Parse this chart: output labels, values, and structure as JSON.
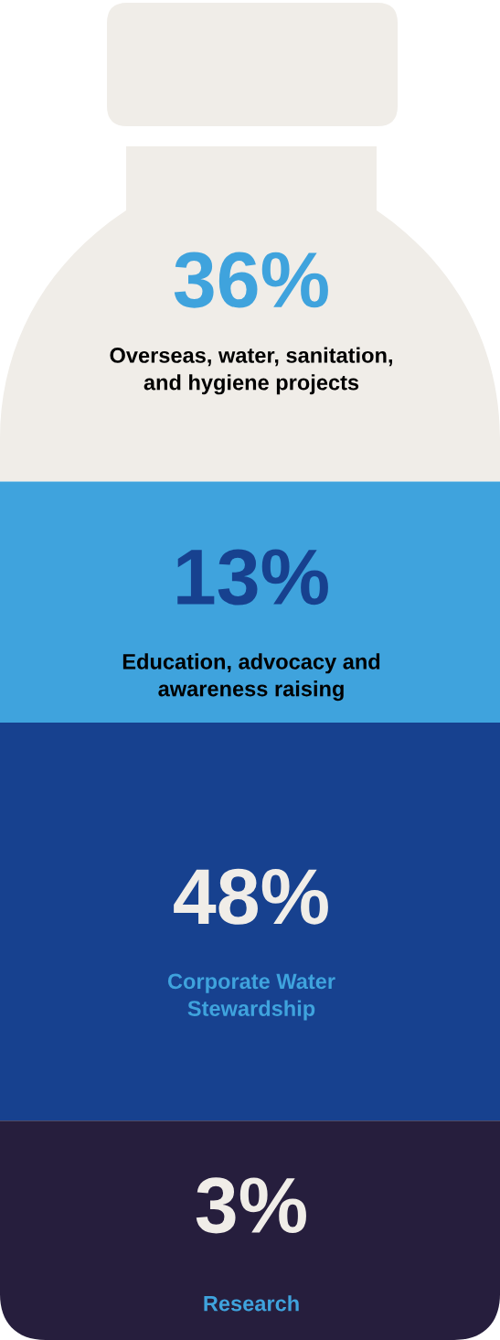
{
  "chart_data": {
    "type": "other",
    "categories": [
      "Overseas, water, sanitation,\nand hygiene projects",
      "Education, advocacy and\nawareness raising",
      "Corporate Water\nStewardship",
      "Research"
    ],
    "values": [
      36,
      13,
      48,
      3
    ],
    "value_labels": [
      "36%",
      "13%",
      "48%",
      "3%"
    ],
    "colors": [
      "#f0ede8",
      "#3fa3dd",
      "#17418f",
      "#261e3d"
    ]
  }
}
